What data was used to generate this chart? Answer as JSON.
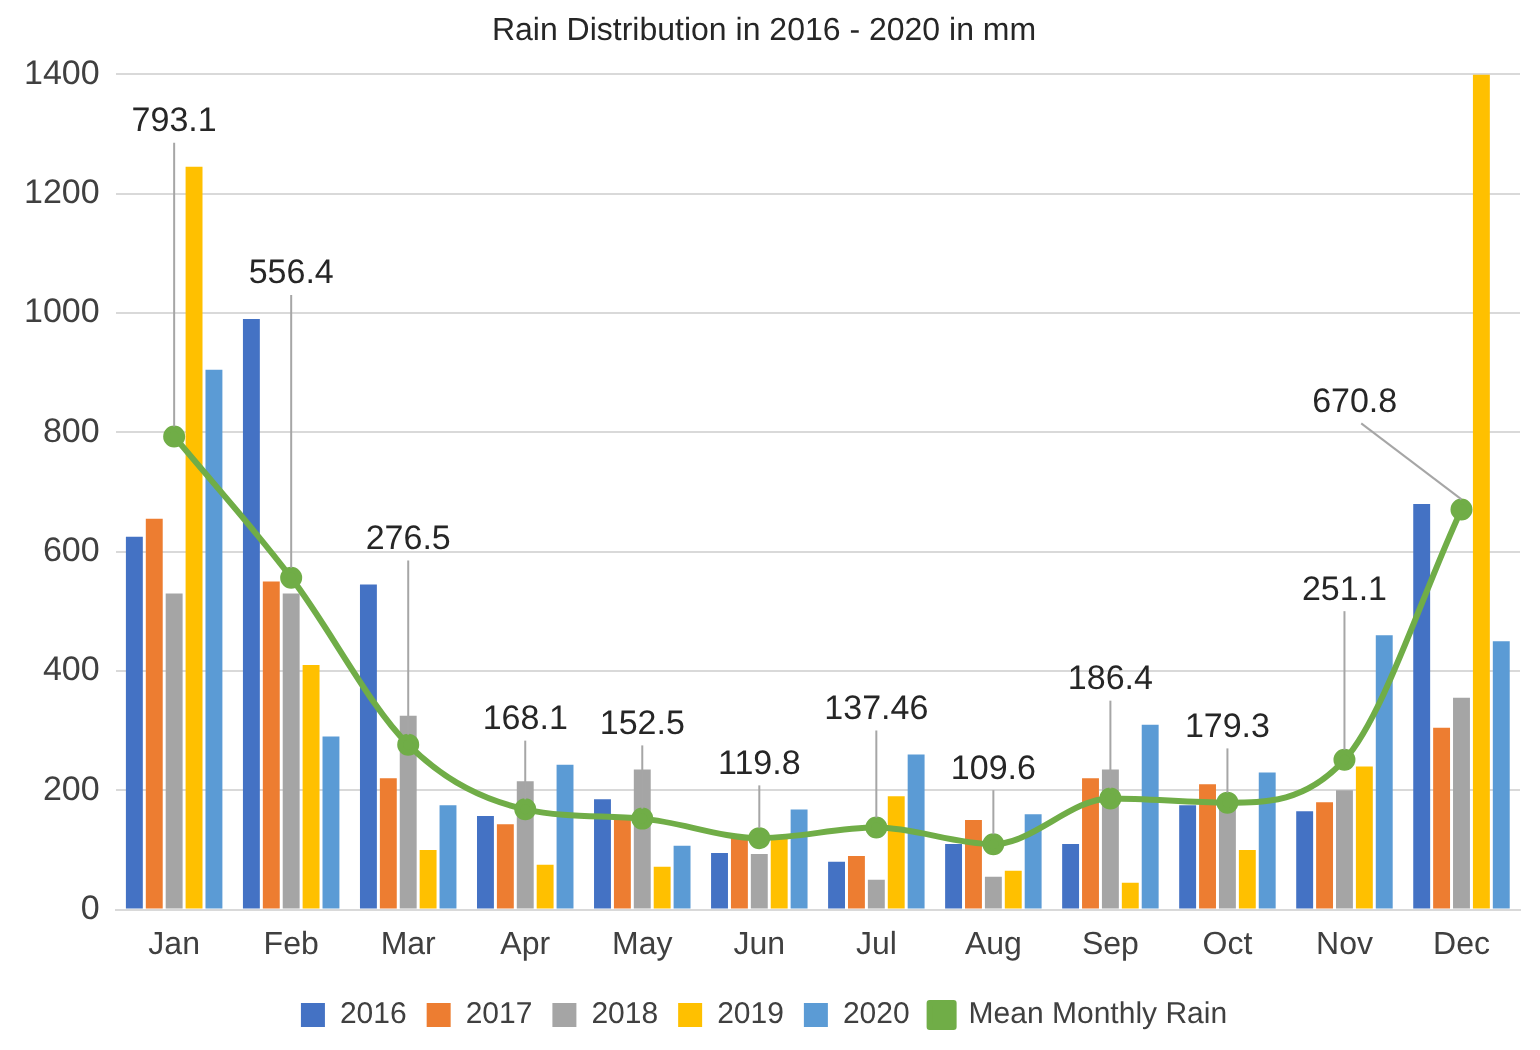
{
  "chart_data": {
    "type": "bar",
    "title": "Rain Distribution in 2016 - 2020 in mm",
    "categories": [
      "Jan",
      "Feb",
      "Mar",
      "Apr",
      "May",
      "Jun",
      "Jul",
      "Aug",
      "Sep",
      "Oct",
      "Nov",
      "Dec"
    ],
    "series": [
      {
        "name": "2016",
        "color": "#4472c4",
        "values": [
          625,
          990,
          545,
          157,
          185,
          95,
          80,
          110,
          110,
          175,
          165,
          680
        ]
      },
      {
        "name": "2017",
        "color": "#ed7d31",
        "values": [
          655,
          550,
          220,
          143,
          152,
          120,
          90,
          150,
          220,
          210,
          180,
          305
        ]
      },
      {
        "name": "2018",
        "color": "#a5a5a5",
        "values": [
          530,
          530,
          325,
          215,
          235,
          93,
          50,
          55,
          235,
          170,
          200,
          355
        ]
      },
      {
        "name": "2019",
        "color": "#ffc000",
        "values": [
          1245,
          410,
          100,
          75,
          72,
          120,
          190,
          65,
          45,
          100,
          240,
          1400
        ]
      },
      {
        "name": "2020",
        "color": "#5b9bd5",
        "values": [
          905,
          290,
          175,
          243,
          107,
          168,
          260,
          160,
          310,
          230,
          460,
          450
        ]
      },
      {
        "name": "Mean Monthly Rain",
        "type": "line",
        "color": "#70ad47",
        "marker": "circle",
        "values": [
          793.1,
          556.4,
          276.5,
          168.1,
          152.5,
          119.8,
          137.46,
          109.6,
          186.4,
          179.3,
          251.1,
          670.8
        ],
        "value_labels": [
          "793.1",
          "556.4",
          "276.5",
          "168.1",
          "152.5",
          "119.8",
          "137.46",
          "109.6",
          "186.4",
          "179.3",
          "251.1",
          "670.8"
        ]
      }
    ],
    "ylim": [
      0,
      1400
    ],
    "yticks": [
      0,
      200,
      400,
      600,
      800,
      1000,
      1200,
      1400
    ],
    "grid": "y",
    "legend": "bottom"
  }
}
